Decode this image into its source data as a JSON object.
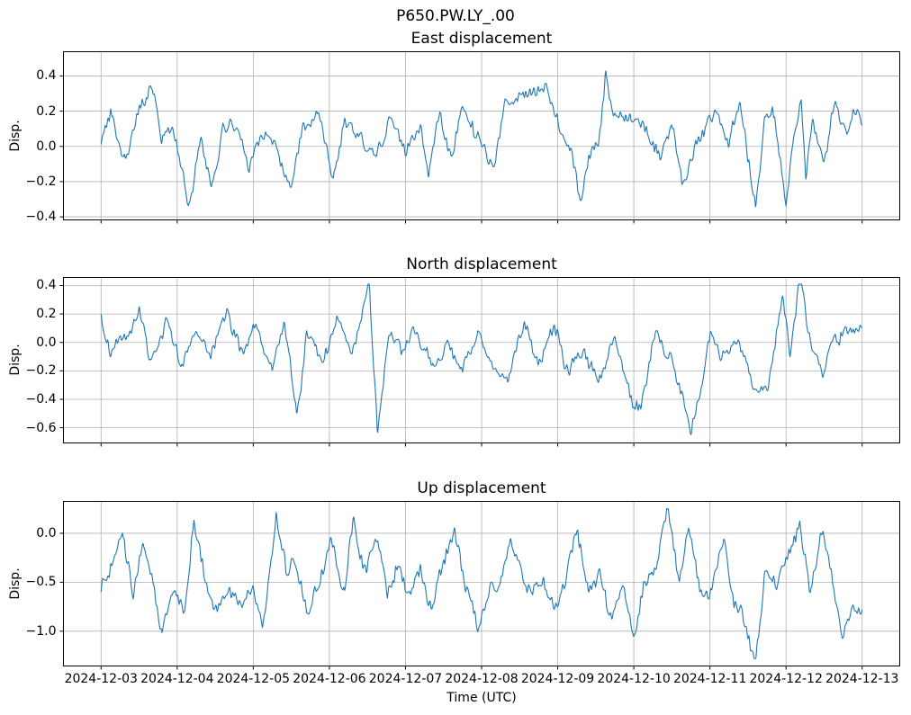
{
  "figure": {
    "suptitle": "P650.PW.LY_.00",
    "xlabel": "Time (UTC)",
    "ylabel": "Disp."
  },
  "colors": {
    "line": "#1f77b4",
    "grid": "#b0b0b0",
    "axis": "#000000",
    "text": "#000000",
    "background": "#ffffff"
  },
  "chart_data": [
    {
      "type": "line",
      "title": "East displacement",
      "ylabel": "Disp.",
      "xlabel": "",
      "x_unit": "days since 2024-12-03 00:00 UTC",
      "xlim": [
        -0.5,
        10.5
      ],
      "xticks": [
        0,
        1,
        2,
        3,
        4,
        5,
        6,
        7,
        8,
        9,
        10
      ],
      "ylim": [
        -0.42,
        0.54
      ],
      "yticks": [
        0.4,
        0.2,
        0.0,
        -0.2,
        -0.4
      ],
      "ytick_labels": [
        "0.4",
        "0.2",
        "0.0",
        "−0.2",
        "−0.4"
      ],
      "grid": true,
      "series": [
        {
          "name": "East",
          "noise_std": 0.05,
          "noise_seed": 3,
          "clip": [
            -0.37,
            0.47
          ],
          "keypoints": [
            [
              0,
              0.05
            ],
            [
              0.15,
              0.18
            ],
            [
              0.3,
              -0.12
            ],
            [
              0.45,
              0.12
            ],
            [
              0.67,
              0.36
            ],
            [
              0.8,
              0.08
            ],
            [
              0.95,
              0.15
            ],
            [
              1.15,
              -0.28
            ],
            [
              1.3,
              0.05
            ],
            [
              1.45,
              -0.17
            ],
            [
              1.6,
              0.12
            ],
            [
              1.8,
              0.18
            ],
            [
              1.95,
              -0.08
            ],
            [
              2.1,
              0.12
            ],
            [
              2.3,
              0.02
            ],
            [
              2.5,
              -0.23
            ],
            [
              2.65,
              0.1
            ],
            [
              2.85,
              0.18
            ],
            [
              3.05,
              -0.22
            ],
            [
              3.2,
              0.15
            ],
            [
              3.4,
              0.08
            ],
            [
              3.6,
              -0.02
            ],
            [
              3.8,
              0.12
            ],
            [
              4.0,
              -0.08
            ],
            [
              4.2,
              0.1
            ],
            [
              4.3,
              -0.22
            ],
            [
              4.45,
              0.18
            ],
            [
              4.6,
              -0.12
            ],
            [
              4.75,
              0.18
            ],
            [
              4.95,
              0.05
            ],
            [
              5.15,
              -0.12
            ],
            [
              5.3,
              0.2
            ],
            [
              5.5,
              0.25
            ],
            [
              5.7,
              0.28
            ],
            [
              5.85,
              0.3
            ],
            [
              6.0,
              0.12
            ],
            [
              6.15,
              0.05
            ],
            [
              6.3,
              -0.25
            ],
            [
              6.45,
              0.0
            ],
            [
              6.55,
              0.1
            ],
            [
              6.63,
              0.47
            ],
            [
              6.7,
              0.28
            ],
            [
              6.85,
              0.18
            ],
            [
              7.0,
              0.2
            ],
            [
              7.2,
              0.05
            ],
            [
              7.35,
              -0.05
            ],
            [
              7.5,
              0.15
            ],
            [
              7.65,
              -0.18
            ],
            [
              7.8,
              0.0
            ],
            [
              7.95,
              0.12
            ],
            [
              8.1,
              0.22
            ],
            [
              8.25,
              0.0
            ],
            [
              8.4,
              0.22
            ],
            [
              8.52,
              -0.1
            ],
            [
              8.6,
              -0.35
            ],
            [
              8.72,
              0.15
            ],
            [
              8.85,
              0.22
            ],
            [
              9.0,
              -0.28
            ],
            [
              9.1,
              0.1
            ],
            [
              9.2,
              0.27
            ],
            [
              9.26,
              -0.18
            ],
            [
              9.35,
              0.12
            ],
            [
              9.5,
              -0.08
            ],
            [
              9.65,
              0.2
            ],
            [
              9.8,
              0.02
            ],
            [
              9.9,
              0.15
            ],
            [
              10,
              0.12
            ]
          ]
        }
      ]
    },
    {
      "type": "line",
      "title": "North displacement",
      "ylabel": "Disp.",
      "xlabel": "",
      "x_unit": "days since 2024-12-03 00:00 UTC",
      "xlim": [
        -0.5,
        10.5
      ],
      "xticks": [
        0,
        1,
        2,
        3,
        4,
        5,
        6,
        7,
        8,
        9,
        10
      ],
      "ylim": [
        -0.71,
        0.46
      ],
      "yticks": [
        0.4,
        0.2,
        0.0,
        -0.2,
        -0.4,
        -0.6
      ],
      "ytick_labels": [
        "0.4",
        "0.2",
        "0.0",
        "−0.2",
        "−0.4",
        "−0.6"
      ],
      "grid": true,
      "series": [
        {
          "name": "North",
          "noise_std": 0.06,
          "noise_seed": 7,
          "clip": [
            -0.68,
            0.41
          ],
          "keypoints": [
            [
              0,
              0.1
            ],
            [
              0.12,
              -0.1
            ],
            [
              0.3,
              0.02
            ],
            [
              0.5,
              0.3
            ],
            [
              0.65,
              -0.12
            ],
            [
              0.85,
              0.15
            ],
            [
              1.05,
              -0.18
            ],
            [
              1.25,
              0.12
            ],
            [
              1.45,
              -0.08
            ],
            [
              1.65,
              0.2
            ],
            [
              1.85,
              -0.15
            ],
            [
              2.05,
              0.1
            ],
            [
              2.25,
              -0.22
            ],
            [
              2.4,
              0.12
            ],
            [
              2.57,
              -0.48
            ],
            [
              2.7,
              0.0
            ],
            [
              2.9,
              -0.12
            ],
            [
              3.1,
              0.12
            ],
            [
              3.3,
              -0.15
            ],
            [
              3.45,
              0.2
            ],
            [
              3.52,
              0.38
            ],
            [
              3.63,
              -0.65
            ],
            [
              3.78,
              0.02
            ],
            [
              3.95,
              -0.08
            ],
            [
              4.15,
              0.12
            ],
            [
              4.35,
              -0.12
            ],
            [
              4.55,
              0.05
            ],
            [
              4.75,
              -0.18
            ],
            [
              4.95,
              0.08
            ],
            [
              5.15,
              -0.12
            ],
            [
              5.35,
              -0.25
            ],
            [
              5.55,
              0.1
            ],
            [
              5.75,
              -0.12
            ],
            [
              5.95,
              0.05
            ],
            [
              6.15,
              -0.22
            ],
            [
              6.35,
              -0.02
            ],
            [
              6.55,
              -0.22
            ],
            [
              6.75,
              0.1
            ],
            [
              6.95,
              -0.32
            ],
            [
              7.1,
              -0.45
            ],
            [
              7.28,
              0.05
            ],
            [
              7.45,
              -0.1
            ],
            [
              7.6,
              -0.3
            ],
            [
              7.75,
              -0.68
            ],
            [
              7.85,
              -0.45
            ],
            [
              8.0,
              0.02
            ],
            [
              8.15,
              -0.12
            ],
            [
              8.35,
              -0.02
            ],
            [
              8.55,
              -0.3
            ],
            [
              8.75,
              -0.38
            ],
            [
              8.95,
              0.3
            ],
            [
              9.05,
              -0.12
            ],
            [
              9.18,
              0.4
            ],
            [
              9.32,
              -0.02
            ],
            [
              9.48,
              -0.32
            ],
            [
              9.62,
              0.0
            ],
            [
              9.78,
              0.12
            ],
            [
              9.9,
              0.05
            ],
            [
              10,
              0.1
            ]
          ]
        }
      ]
    },
    {
      "type": "line",
      "title": "Up displacement",
      "ylabel": "Disp.",
      "xlabel": "Time (UTC)",
      "x_unit": "days since 2024-12-03 00:00 UTC",
      "xlim": [
        -0.5,
        10.5
      ],
      "xticks": [
        0,
        1,
        2,
        3,
        4,
        5,
        6,
        7,
        8,
        9,
        10
      ],
      "xtick_labels": [
        "2024-12-03",
        "2024-12-04",
        "2024-12-05",
        "2024-12-06",
        "2024-12-07",
        "2024-12-08",
        "2024-12-09",
        "2024-12-10",
        "2024-12-11",
        "2024-12-12",
        "2024-12-13"
      ],
      "ylim": [
        -1.36,
        0.33
      ],
      "yticks": [
        0.0,
        -0.5,
        -1.0
      ],
      "ytick_labels": [
        "0.0",
        "−0.5",
        "−1.0"
      ],
      "grid": true,
      "series": [
        {
          "name": "Up",
          "noise_std": 0.1,
          "noise_seed": 13,
          "clip": [
            -1.28,
            0.25
          ],
          "keypoints": [
            [
              0,
              -0.62
            ],
            [
              0.12,
              -0.4
            ],
            [
              0.28,
              0.05
            ],
            [
              0.42,
              -0.62
            ],
            [
              0.55,
              0.0
            ],
            [
              0.68,
              -0.5
            ],
            [
              0.8,
              -0.95
            ],
            [
              0.95,
              -0.5
            ],
            [
              1.1,
              -0.82
            ],
            [
              1.22,
              0.05
            ],
            [
              1.38,
              -0.62
            ],
            [
              1.52,
              -0.9
            ],
            [
              1.68,
              -0.5
            ],
            [
              1.82,
              -0.72
            ],
            [
              1.98,
              -0.45
            ],
            [
              2.12,
              -0.9
            ],
            [
              2.3,
              0.25
            ],
            [
              2.45,
              -0.52
            ],
            [
              2.58,
              -0.32
            ],
            [
              2.72,
              -0.82
            ],
            [
              2.88,
              -0.52
            ],
            [
              3.02,
              0.05
            ],
            [
              3.18,
              -0.52
            ],
            [
              3.32,
              0.1
            ],
            [
              3.48,
              -0.42
            ],
            [
              3.6,
              0.05
            ],
            [
              3.75,
              -0.62
            ],
            [
              3.9,
              -0.42
            ],
            [
              4.05,
              -0.72
            ],
            [
              4.2,
              -0.5
            ],
            [
              4.35,
              -0.85
            ],
            [
              4.5,
              -0.42
            ],
            [
              4.65,
              0.05
            ],
            [
              4.8,
              -0.62
            ],
            [
              4.95,
              -1.0
            ],
            [
              5.1,
              -0.52
            ],
            [
              5.25,
              -0.42
            ],
            [
              5.38,
              0.05
            ],
            [
              5.5,
              -0.32
            ],
            [
              5.65,
              -0.62
            ],
            [
              5.8,
              -0.42
            ],
            [
              5.95,
              -0.72
            ],
            [
              6.1,
              -0.42
            ],
            [
              6.25,
              0.0
            ],
            [
              6.4,
              -0.58
            ],
            [
              6.55,
              -0.42
            ],
            [
              6.7,
              -0.9
            ],
            [
              6.85,
              -0.62
            ],
            [
              7.0,
              -1.05
            ],
            [
              7.15,
              -0.52
            ],
            [
              7.3,
              -0.45
            ],
            [
              7.45,
              0.2
            ],
            [
              7.6,
              -0.52
            ],
            [
              7.72,
              0.0
            ],
            [
              7.88,
              -0.52
            ],
            [
              8.02,
              -0.42
            ],
            [
              8.18,
              0.0
            ],
            [
              8.32,
              -0.62
            ],
            [
              8.48,
              -0.9
            ],
            [
              8.6,
              -1.28
            ],
            [
              8.72,
              -0.42
            ],
            [
              8.88,
              -0.52
            ],
            [
              9.02,
              -0.32
            ],
            [
              9.18,
              0.05
            ],
            [
              9.32,
              -0.62
            ],
            [
              9.45,
              0.0
            ],
            [
              9.6,
              -0.45
            ],
            [
              9.72,
              -1.1
            ],
            [
              9.85,
              -0.72
            ],
            [
              10,
              -0.65
            ]
          ]
        }
      ]
    }
  ]
}
